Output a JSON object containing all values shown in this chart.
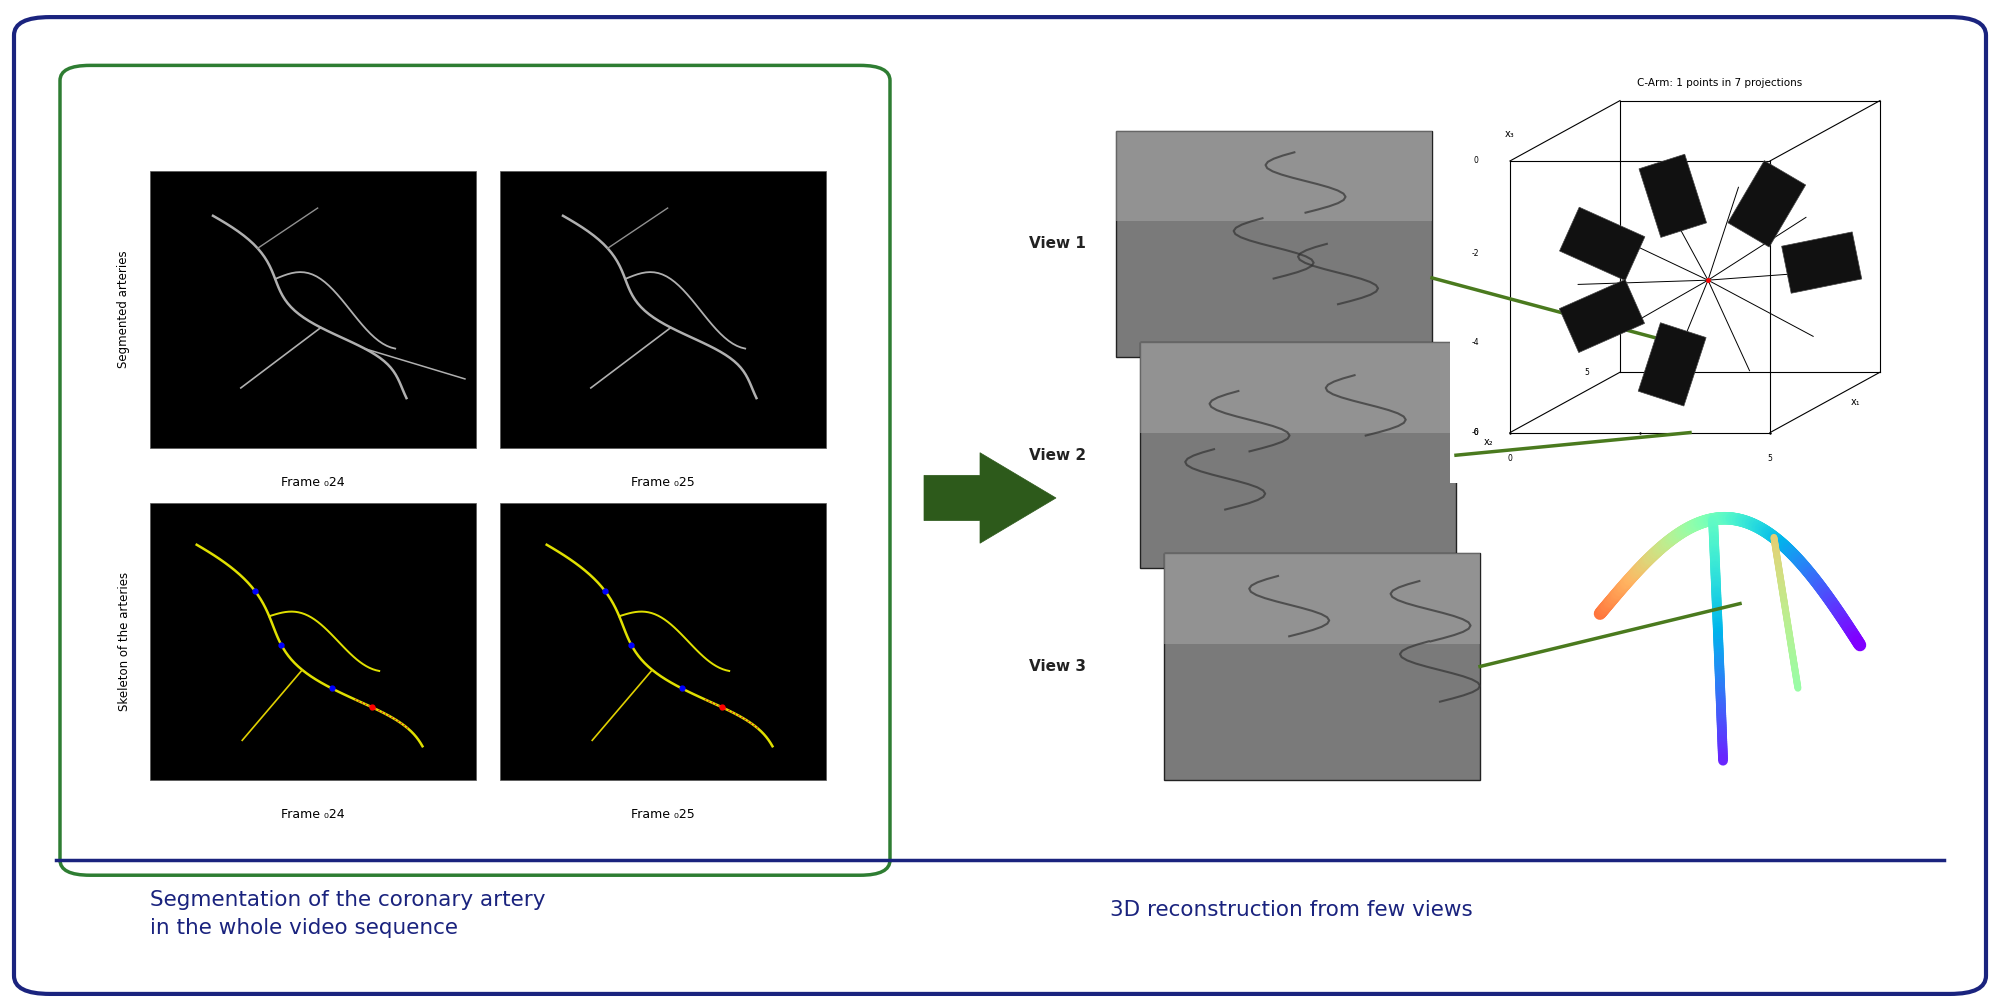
{
  "bg_color": "#ffffff",
  "outer_border_color": "#1a237e",
  "inner_border_color": "#2e7d32",
  "text_left_title": "Segmentation of the coronary artery\nin the whole video sequence",
  "text_right_title": "3D reconstruction from few views",
  "text_color": "#1a237e",
  "label_segmented": "Segmented arteries",
  "label_skeleton": "Skeleton of the arteries",
  "view_labels": [
    "View 1",
    "View 2",
    "View 3"
  ],
  "carm_title": "C-Arm: 1 points in 7 projections",
  "arrow_color": "#2d5a1b"
}
